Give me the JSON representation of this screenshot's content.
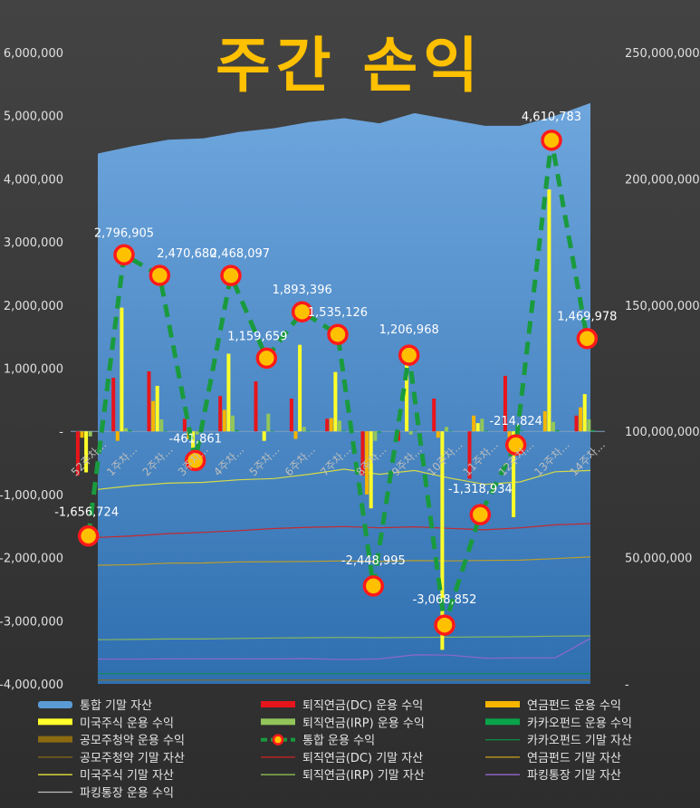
{
  "chart_data": {
    "type": "bar",
    "title": "주간 손익",
    "categories": [
      "52주차...",
      "1주차...",
      "2주차...",
      "3주차...",
      "4주차...",
      "5주차...",
      "6주차...",
      "7주차...",
      "8주차...",
      "9주차...",
      "10주차...",
      "11주차...",
      "12주차...",
      "13주차...",
      "14주차..."
    ],
    "y_left": {
      "min": -4000000,
      "max": 6000000,
      "ticks": [
        "6,000,000",
        "5,000,000",
        "4,000,000",
        "3,000,000",
        "2,000,000",
        "1,000,000",
        "-",
        "-1,000,000",
        "-2,000,000",
        "-3,000,000",
        "-4,000,000"
      ]
    },
    "y_right": {
      "min": 0,
      "max": 250000000,
      "ticks": [
        "250,000,000",
        "200,000,000",
        "150,000,000",
        "100,000,000",
        "50,000,000",
        "-"
      ]
    },
    "legend_position": "bottom",
    "gridlines": false,
    "bar_series": [
      {
        "name": "퇴직연금(DC) 운용 수익",
        "color": "#e8141b",
        "values": [
          -700000,
          850000,
          950000,
          200000,
          560000,
          790000,
          520000,
          200000,
          -700000,
          -150000,
          520000,
          -750000,
          880000,
          0,
          250000
        ]
      },
      {
        "name": "연금펀드 운용 수익",
        "color": "#f5b400",
        "values": [
          -100000,
          -150000,
          480000,
          -120000,
          340000,
          0,
          -120000,
          210000,
          -1000000,
          0,
          -100000,
          250000,
          -100000,
          320000,
          380000
        ]
      },
      {
        "name": "미국주식 운용 수익",
        "color": "#ffff2a",
        "values": [
          -650000,
          1960000,
          720000,
          -600000,
          1230000,
          -150000,
          1370000,
          940000,
          -1220000,
          1270000,
          -3460000,
          130000,
          -1360000,
          3830000,
          590000
        ]
      },
      {
        "name": "퇴직연금(IRP) 운용 수익",
        "color": "#92c55a",
        "values": [
          -80000,
          50000,
          190000,
          -50000,
          250000,
          280000,
          70000,
          170000,
          -150000,
          -50000,
          70000,
          200000,
          100000,
          150000,
          190000
        ]
      },
      {
        "name": "카카오펀드 운용 수익",
        "color": "#0aa34a",
        "values": [
          0,
          20000,
          10000,
          0,
          20000,
          10000,
          10000,
          10000,
          -20000,
          10000,
          10000,
          10000,
          10000,
          20000,
          20000
        ]
      },
      {
        "name": "공모주청약 운용 수익",
        "color": "#8b6a10",
        "values": [
          0,
          0,
          0,
          0,
          0,
          0,
          0,
          0,
          0,
          0,
          0,
          0,
          0,
          0,
          0
        ]
      }
    ],
    "total_series": {
      "name": "통합 운용 수익",
      "values": [
        -1656724,
        2796905,
        2470680,
        -461861,
        2468097,
        1159659,
        1893396,
        1535126,
        -2448995,
        1206968,
        -3068852,
        -1318934,
        -214824,
        4610783,
        1469978
      ],
      "labels": [
        "-1,656,724",
        "2,796,905",
        "2,470,680",
        "-461,861",
        "2,468,097",
        "1,159,659",
        "1,893,396",
        "1,535,126",
        "-2,448,995",
        "1,206,968",
        "-3,068,852",
        "-1,318,934",
        "-214,824",
        "4,610,783",
        "1,469,978"
      ],
      "line_color": "#1a9a3e",
      "marker_fill": "#ffc000",
      "marker_edge": "#ff1a1a"
    },
    "area_series": {
      "name": "통합 기말 자산",
      "color": "#5b9bd5",
      "values": [
        210000000,
        213000000,
        215500000,
        216000000,
        218500000,
        220000000,
        222500000,
        224000000,
        222000000,
        226000000,
        223500000,
        221000000,
        221000000,
        225000000,
        230000000
      ]
    },
    "asset_lines": [
      {
        "name": "미국주식 기말 자산",
        "color": "#e3e33a",
        "values": [
          77000000,
          78500000,
          79500000,
          79800000,
          80800000,
          81300000,
          83000000,
          85000000,
          83000000,
          84500000,
          81500000,
          79000000,
          80000000,
          84000000,
          84500000
        ]
      },
      {
        "name": "퇴직연금(DC) 기말 자산",
        "color": "#d42020",
        "values": [
          58000000,
          58600000,
          59500000,
          60000000,
          60700000,
          61500000,
          62000000,
          62300000,
          61800000,
          62200000,
          61600000,
          61000000,
          61800000,
          63000000,
          63500000
        ]
      },
      {
        "name": "연금펀드 기말 자산",
        "color": "#c9a21a",
        "values": [
          47000000,
          47200000,
          47800000,
          47900000,
          48300000,
          48400000,
          48500000,
          48700000,
          48500000,
          48800000,
          48700000,
          48900000,
          49000000,
          49600000,
          50300000
        ]
      },
      {
        "name": "퇴직연금(IRP) 기말 자산",
        "color": "#8fbf55",
        "values": [
          17500000,
          17600000,
          17800000,
          17800000,
          18000000,
          18200000,
          18300000,
          18400000,
          18300000,
          18400000,
          18500000,
          18600000,
          18700000,
          18900000,
          19000000
        ]
      },
      {
        "name": "파킹통장 기말 자산",
        "color": "#9966cc",
        "values": [
          9800000,
          9800000,
          9900000,
          9900000,
          9900000,
          9900000,
          10000000,
          9600000,
          9900000,
          11500000,
          11400000,
          10200000,
          10300000,
          10300000,
          18000000
        ]
      },
      {
        "name": "카카오펀드 기말 자산",
        "color": "#0e8f43",
        "values": [
          4000000,
          4000000,
          4000000,
          4000000,
          4000000,
          4000000,
          4000000,
          4000000,
          4000000,
          4000000,
          4000000,
          4000000,
          4000000,
          4000000,
          4000000
        ]
      },
      {
        "name": "공모주청약 기말 자산",
        "color": "#8a6b12",
        "values": [
          1500000,
          1500000,
          1500000,
          1500000,
          1500000,
          1500000,
          1500000,
          1500000,
          1500000,
          1500000,
          1500000,
          1500000,
          1500000,
          1500000,
          1500000
        ]
      }
    ],
    "legend": [
      {
        "label": "통합 기말 자산",
        "kind": "area",
        "color": "#5b9bd5"
      },
      {
        "label": "퇴직연금(DC) 운용 수익",
        "kind": "bar",
        "color": "#e8141b"
      },
      {
        "label": "연금펀드 운용 수익",
        "kind": "bar",
        "color": "#f5b400"
      },
      {
        "label": "미국주식 운용 수익",
        "kind": "bar",
        "color": "#ffff2a"
      },
      {
        "label": "퇴직연금(IRP) 운용 수익",
        "kind": "bar",
        "color": "#92c55a"
      },
      {
        "label": "카카오펀드 운용 수익",
        "kind": "bar",
        "color": "#0aa34a"
      },
      {
        "label": "공모주청약 운용 수익",
        "kind": "bar",
        "color": "#8b6a10"
      },
      {
        "label": "통합 운용 수익",
        "kind": "marker",
        "color": "#1a9a3e"
      },
      {
        "label": "카카오펀드 기말 자산",
        "kind": "line",
        "color": "#0e8f43"
      },
      {
        "label": "공모주청약 기말 자산",
        "kind": "line",
        "color": "#8a6b12"
      },
      {
        "label": "퇴직연금(DC) 기말 자산",
        "kind": "line",
        "color": "#d42020"
      },
      {
        "label": "연금펀드 기말 자산",
        "kind": "line",
        "color": "#c9a21a"
      },
      {
        "label": "미국주식 기말 자산",
        "kind": "line",
        "color": "#e3e33a"
      },
      {
        "label": "퇴직연금(IRP) 기말 자산",
        "kind": "line",
        "color": "#8fbf55"
      },
      {
        "label": "파킹통장 기말 자산",
        "kind": "line",
        "color": "#9966cc"
      },
      {
        "label": "파킹통장 운용 수익",
        "kind": "line",
        "color": "#bdbdbd"
      }
    ]
  }
}
